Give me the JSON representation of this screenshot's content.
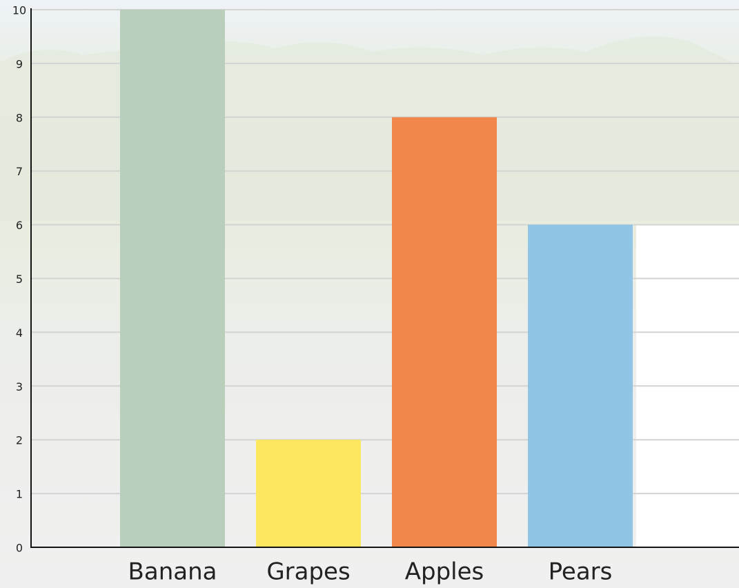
{
  "chart_data": {
    "type": "bar",
    "categories": [
      "Banana",
      "Grapes",
      "Apples",
      "Pears"
    ],
    "values": [
      10,
      2,
      8,
      6
    ],
    "colors": [
      "#b9cfbb",
      "#fee760",
      "#f2874b",
      "#90c5e6"
    ],
    "ylim": [
      0,
      10
    ],
    "yticks": [
      0,
      1,
      2,
      3,
      4,
      5,
      6,
      7,
      8,
      9,
      10
    ],
    "grid": true
  }
}
